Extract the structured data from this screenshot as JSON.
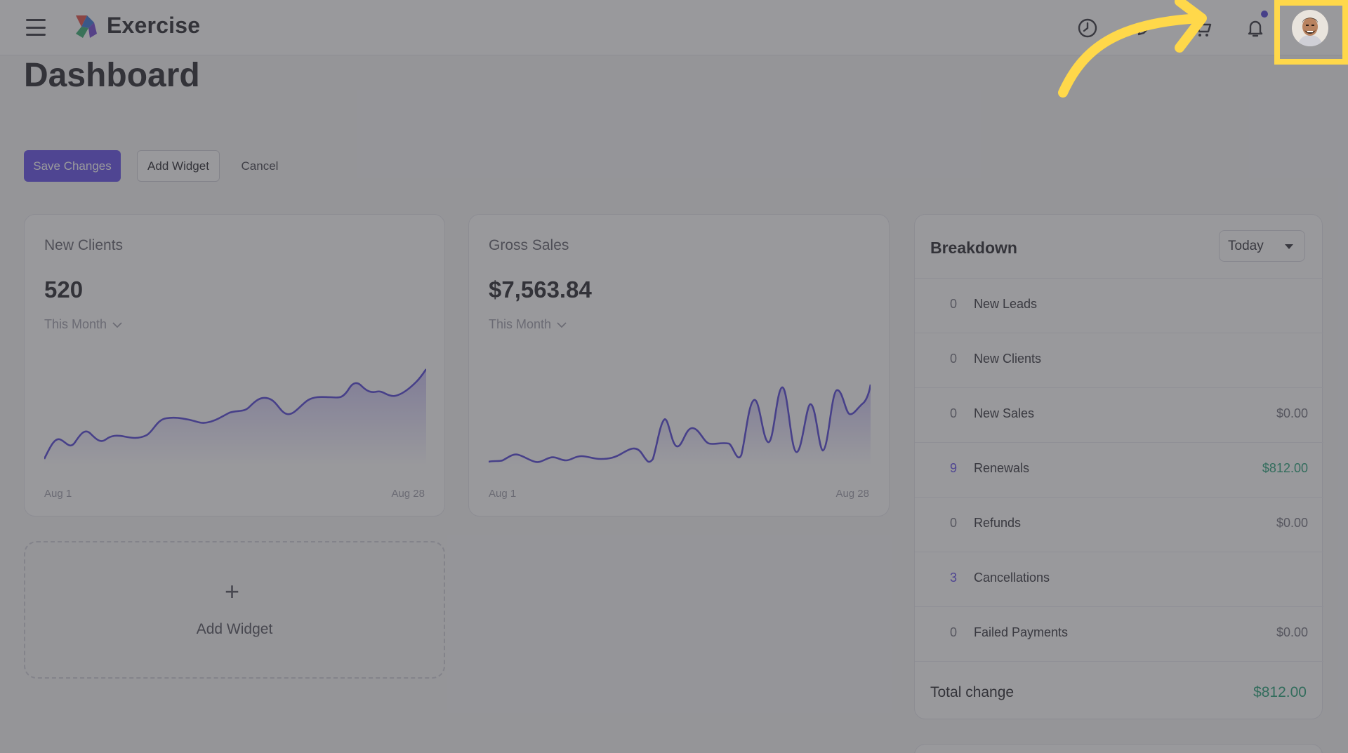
{
  "app": {
    "title": "Exercise"
  },
  "page": {
    "title": "Dashboard"
  },
  "toolbar": {
    "save_label": "Save Changes",
    "add_widget_label": "Add Widget",
    "cancel_label": "Cancel"
  },
  "widgets": {
    "new_clients": {
      "title": "New Clients",
      "value": "520",
      "period": "This Month",
      "x_start": "Aug 1",
      "x_end": "Aug 28"
    },
    "gross_sales": {
      "title": "Gross Sales",
      "value": "$7,563.84",
      "period": "This Month",
      "x_start": "Aug 1",
      "x_end": "Aug 28"
    },
    "add_widget": {
      "plus": "+",
      "label": "Add Widget"
    }
  },
  "breakdown": {
    "title": "Breakdown",
    "period": "Today",
    "rows": [
      {
        "count": "0",
        "label": "New Leads",
        "amount": ""
      },
      {
        "count": "0",
        "label": "New Clients",
        "amount": ""
      },
      {
        "count": "0",
        "label": "New Sales",
        "amount": "$0.00"
      },
      {
        "count": "9",
        "label": "Renewals",
        "amount": "$812.00"
      },
      {
        "count": "0",
        "label": "Refunds",
        "amount": "$0.00"
      },
      {
        "count": "3",
        "label": "Cancellations",
        "amount": ""
      },
      {
        "count": "0",
        "label": "Failed Payments",
        "amount": "$0.00"
      }
    ],
    "total_label": "Total change",
    "total_value": "$812.00"
  },
  "colors": {
    "accent": "#5b45e8",
    "positive": "#1e9e74",
    "highlight": "#ffd84a"
  },
  "icons": {
    "history": "history-icon",
    "edit": "pencil-icon",
    "cart": "cart-icon",
    "bell": "bell-icon"
  }
}
